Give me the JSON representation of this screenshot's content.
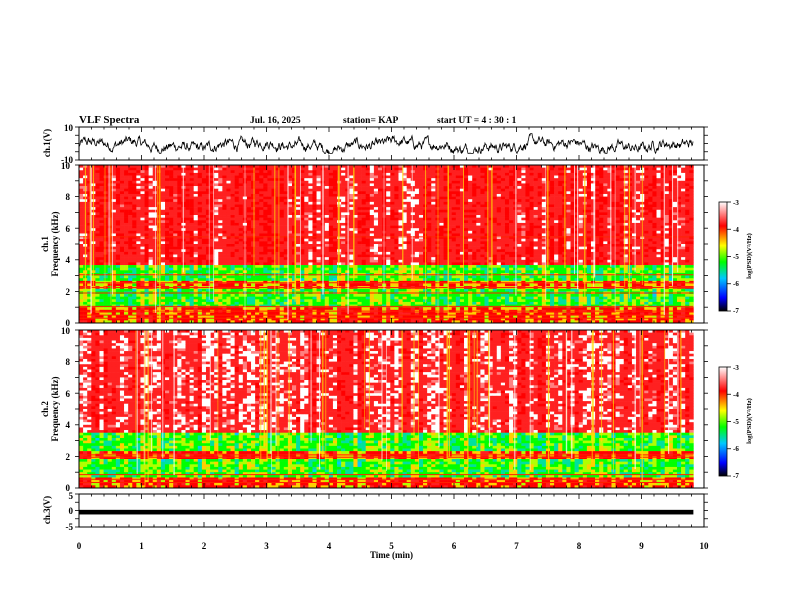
{
  "header": {
    "title": "VLF Spectra",
    "date": "Jul. 16, 2025",
    "station": "station= KAP",
    "start": "start  UT  =   4 : 30 : 1"
  },
  "chart_data": [
    {
      "type": "line",
      "name": "ch1-waveform",
      "ylabel": "ch.1(V)",
      "ylim": [
        -10,
        10
      ],
      "yticks": [
        "10",
        "-10"
      ],
      "xlim": [
        0,
        10
      ],
      "data_end_min": 9.83,
      "amplitude_v": [
        -6,
        6
      ]
    },
    {
      "type": "heatmap",
      "name": "ch1-spectrogram",
      "ylabel": "ch.1",
      "ylabel2": "Frequency (kHz)",
      "ylim": [
        0,
        10
      ],
      "yticks": [
        "0",
        "2",
        "4",
        "6",
        "8",
        "10"
      ],
      "xlim": [
        0,
        10
      ],
      "data_end_min": 9.83,
      "colorbar": {
        "ticks": [
          "-3",
          "-4",
          "-5",
          "-6",
          "-7"
        ],
        "label": "log(PSD)(V²/Hz)",
        "range": [
          -7,
          -3
        ]
      },
      "bands_khz": [
        {
          "f0": 3.6,
          "f1": 10.0,
          "level": -3.7
        },
        {
          "f0": 2.6,
          "f1": 3.6,
          "level": -5.0
        },
        {
          "f0": 2.2,
          "f1": 2.6,
          "level": -4.3
        },
        {
          "f0": 1.0,
          "f1": 2.2,
          "level": -5.0
        },
        {
          "f0": 0.0,
          "f1": 1.0,
          "level": -4.2
        }
      ],
      "lines_khz": [
        0.3,
        0.5,
        0.75,
        1.05,
        1.9,
        2.25,
        2.55,
        3.05,
        5.45
      ]
    },
    {
      "type": "heatmap",
      "name": "ch2-spectrogram",
      "ylabel": "ch.2",
      "ylabel2": "Frequency (kHz)",
      "ylim": [
        0,
        10
      ],
      "yticks": [
        "0",
        "2",
        "4",
        "6",
        "8",
        "10"
      ],
      "xlim": [
        0,
        10
      ],
      "data_end_min": 9.83,
      "colorbar": {
        "ticks": [
          "-3",
          "-4",
          "-5",
          "-6",
          "-7"
        ],
        "label": "log(PSD)(V²/Hz)",
        "range": [
          -7,
          -3
        ]
      },
      "bands_khz": [
        {
          "f0": 3.5,
          "f1": 10.0,
          "level": -3.5
        },
        {
          "f0": 2.3,
          "f1": 3.5,
          "level": -5.0
        },
        {
          "f0": 1.9,
          "f1": 2.3,
          "level": -4.2
        },
        {
          "f0": 0.6,
          "f1": 1.9,
          "level": -5.0
        },
        {
          "f0": 0.0,
          "f1": 0.6,
          "level": -4.2
        }
      ],
      "lines_khz": [
        0.35,
        0.55,
        0.85,
        1.95,
        2.1
      ]
    },
    {
      "type": "line",
      "name": "ch3-waveform",
      "ylabel": "ch.3(V)",
      "ylim": [
        -5,
        5
      ],
      "yticks": [
        "5",
        "0",
        "-5"
      ],
      "xlim": [
        0,
        10
      ],
      "data_end_min": 9.83,
      "amplitude_v": [
        -1.2,
        0.2
      ]
    }
  ],
  "xaxis": {
    "label": "Time (min)",
    "ticks": [
      "0",
      "1",
      "2",
      "3",
      "4",
      "5",
      "6",
      "7",
      "8",
      "9",
      "10"
    ],
    "range": [
      0,
      10
    ]
  },
  "colors": {
    "high": "#ff0000",
    "mid_high": "#ffd000",
    "mid": "#00ff00",
    "mid_low": "#00ffff",
    "low": "#0000ff",
    "floor": "#000000"
  }
}
